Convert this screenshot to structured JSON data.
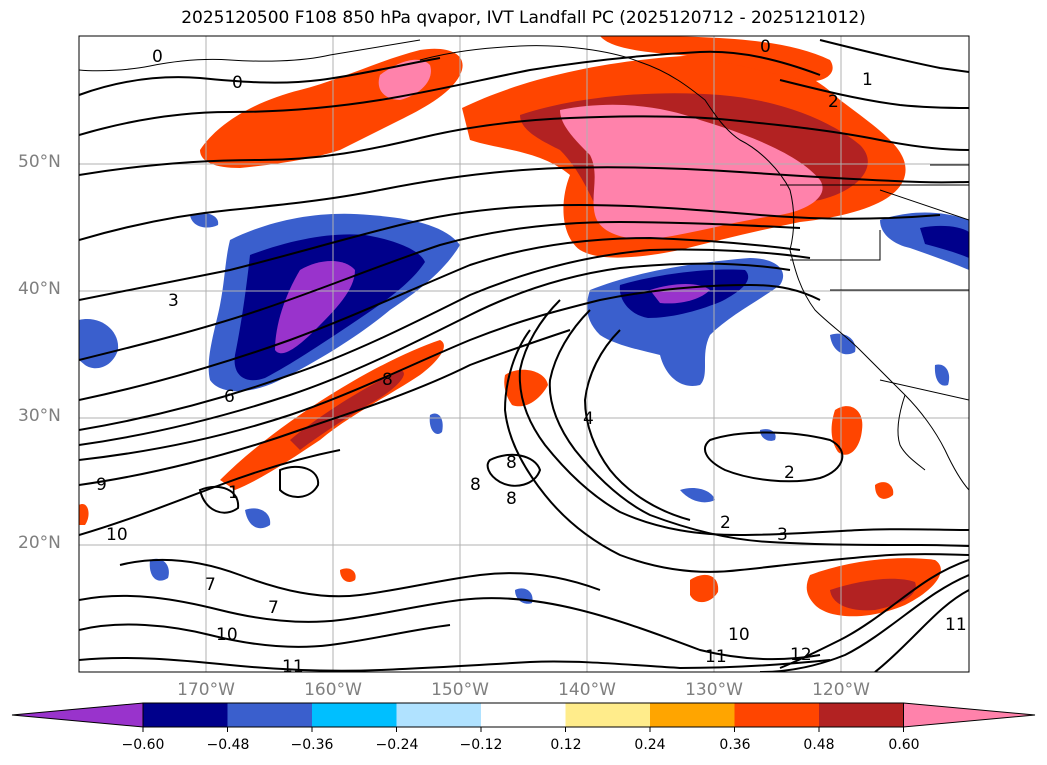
{
  "title": "2025120500 F108 850 hPa qvapor, IVT Landfall PC (2025120712 - 2025121012)",
  "lat_labels": [
    "50°N",
    "40°N",
    "30°N",
    "20°N"
  ],
  "lon_labels": [
    "170°W",
    "160°W",
    "150°W",
    "140°W",
    "130°W",
    "120°W"
  ],
  "colorbar": {
    "labels": [
      "−0.60",
      "−0.48",
      "−0.36",
      "−0.24",
      "−0.12",
      "0.12",
      "0.24",
      "0.36",
      "0.48",
      "0.60"
    ],
    "colors": [
      "#9933cc",
      "#00008b",
      "#3a5fcd",
      "#00bfff",
      "#b0e2ff",
      "#ffffff",
      "#ffec8b",
      "#ffa500",
      "#ff4500",
      "#b22222",
      "#ff82ab"
    ]
  },
  "contour_labels": [
    "0",
    "0",
    "0",
    "1",
    "2",
    "3",
    "6",
    "8",
    "9",
    "10",
    "1",
    "8",
    "8",
    "8",
    "4",
    "2",
    "2",
    "3",
    "7",
    "7",
    "10",
    "11",
    "10",
    "11",
    "12",
    "11"
  ],
  "colors": {
    "pink": "#ff82ab",
    "dark_red": "#b22222",
    "orange_red": "#ff4500",
    "orange": "#ffa500",
    "yellow": "#ffec8b",
    "light_blue": "#b0e2ff",
    "deep_sky": "#00bfff",
    "royal_blue": "#3a5fcd",
    "navy": "#00008b",
    "purple": "#9933cc",
    "grid": "#b0b0b0",
    "tick_label": "#7f7f7f"
  }
}
